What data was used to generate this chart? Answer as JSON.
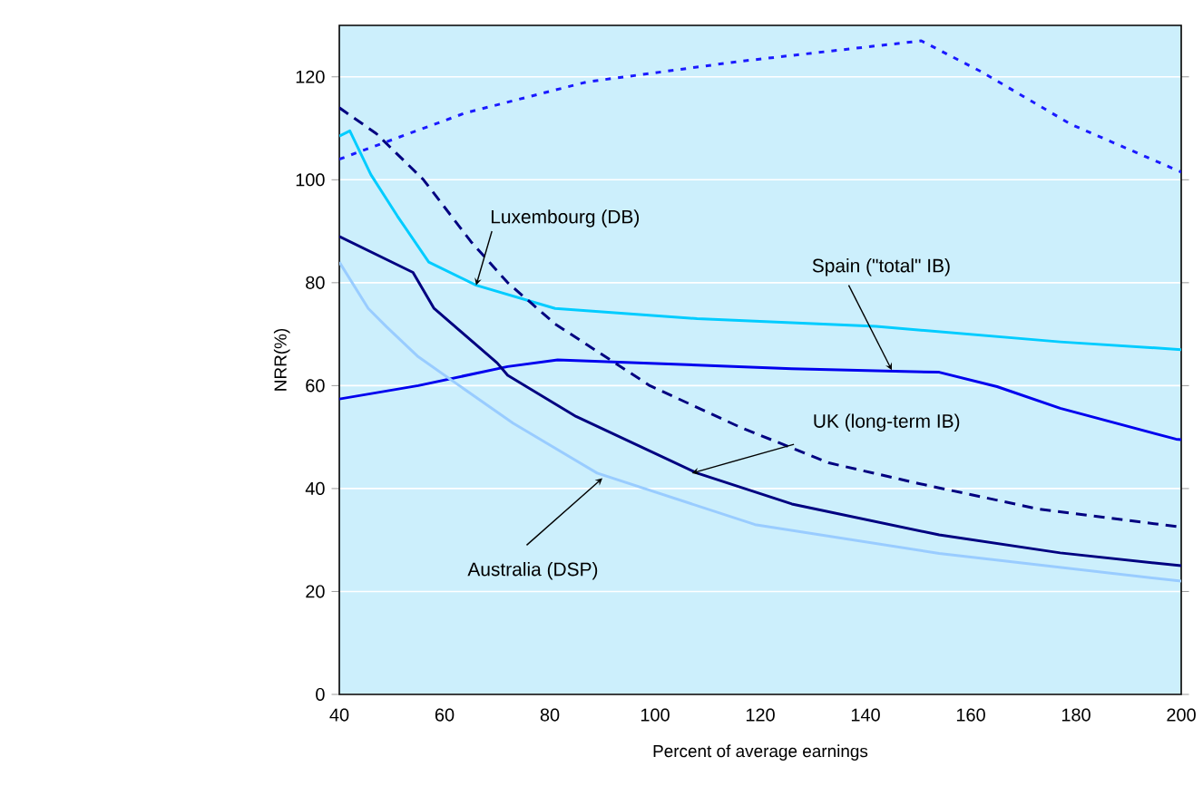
{
  "chart_data": {
    "type": "line",
    "xlabel": "Percent of average earnings",
    "ylabel": "NRR(%)",
    "xlim": [
      40,
      200
    ],
    "xticks": [
      40,
      60,
      80,
      100,
      120,
      140,
      160,
      180,
      200
    ],
    "ylim": [
      0,
      130
    ],
    "yticks": [
      0,
      20,
      40,
      60,
      80,
      100,
      120
    ],
    "grid": "y",
    "series": [
      {
        "color": "#00ccff",
        "line_style": "solid",
        "x": [
          40,
          42,
          46,
          51,
          57,
          66,
          81,
          108,
          142,
          177,
          200
        ],
        "values": [
          108.5,
          109.5,
          101,
          93,
          84,
          79.5,
          75,
          73,
          71.5,
          68.5,
          67
        ]
      },
      {
        "color": "#0000ee",
        "line_style": "solid",
        "x": [
          40,
          55,
          72,
          81.5,
          126,
          154,
          165,
          177,
          199,
          200
        ],
        "values": [
          57.4,
          60,
          63.7,
          65,
          63.3,
          62.6,
          59.8,
          55.6,
          49.6,
          49.5
        ]
      },
      {
        "color": "#000080",
        "line_style": "solid",
        "x": [
          40,
          54,
          58,
          70,
          72,
          85,
          108,
          126,
          154,
          177,
          200
        ],
        "values": [
          89,
          82,
          75,
          64.4,
          62,
          54,
          43,
          37,
          31,
          27.5,
          25
        ]
      },
      {
        "color": "#99ccff",
        "line_style": "solid",
        "x": [
          40,
          45.5,
          49,
          55,
          73,
          89,
          119,
          154,
          200
        ],
        "values": [
          84,
          75,
          71.4,
          65.6,
          52.7,
          43,
          33,
          27.4,
          22
        ]
      },
      {
        "color": "#1a1aff",
        "line_style": "dotted",
        "x": [
          40,
          52.5,
          64,
          87,
          116,
          150.6,
          162,
          179,
          200
        ],
        "values": [
          104,
          108.7,
          113,
          119,
          123,
          127,
          121,
          110.8,
          101.5
        ]
      },
      {
        "color": "#000080",
        "line_style": "dashed",
        "x": [
          40,
          47,
          56,
          65,
          72,
          81,
          87,
          99,
          116,
          133,
          150,
          173,
          200
        ],
        "values": [
          114,
          109,
          100,
          88,
          80,
          72,
          68,
          60,
          52,
          45,
          41,
          36,
          32.5
        ]
      }
    ],
    "annotations": [
      {
        "text": "Luxembourg (DB)",
        "x": 66,
        "y": 79.5
      },
      {
        "text": "Spain (\"total\" IB)",
        "x": 145,
        "y": 63
      },
      {
        "text": "UK (long-term IB)",
        "x": 107,
        "y": 43
      },
      {
        "text": "Australia (DSP)",
        "x": 90,
        "y": 42
      }
    ]
  }
}
